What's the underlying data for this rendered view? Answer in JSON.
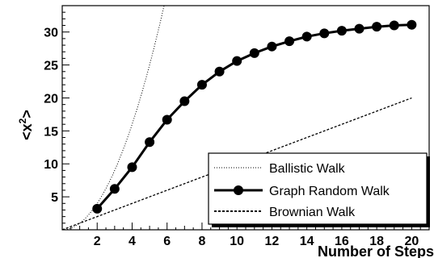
{
  "chart_data": {
    "type": "line",
    "xlabel": "Number of Steps",
    "ylabel": "<x",
    "ylabel_sup": "2",
    "ylabel_suffix": ">",
    "xlim": [
      0,
      21
    ],
    "ylim": [
      0,
      34
    ],
    "x_ticks": [
      2,
      4,
      6,
      8,
      10,
      12,
      14,
      16,
      18,
      20
    ],
    "y_ticks": [
      5,
      10,
      15,
      20,
      25,
      30
    ],
    "grid": false,
    "legend_position": "bottom-right",
    "series": [
      {
        "name": "Ballistic Walk",
        "style": "dotted",
        "x": [
          0,
          1,
          2,
          3,
          4,
          5,
          5.83
        ],
        "y": [
          0,
          1,
          4,
          9,
          16,
          25,
          34
        ]
      },
      {
        "name": "Graph Random Walk",
        "style": "solid-markers",
        "x": [
          2,
          3,
          4,
          5,
          6,
          7,
          8,
          9,
          10,
          11,
          12,
          13,
          14,
          15,
          16,
          17,
          18,
          19,
          20
        ],
        "y": [
          3.2,
          6.2,
          9.5,
          13.3,
          16.7,
          19.5,
          22.0,
          24.0,
          25.6,
          26.8,
          27.8,
          28.6,
          29.3,
          29.8,
          30.2,
          30.5,
          30.8,
          31.0,
          31.1
        ]
      },
      {
        "name": "Brownian Walk",
        "style": "dashed",
        "x": [
          0,
          20
        ],
        "y": [
          0,
          20
        ]
      }
    ]
  }
}
